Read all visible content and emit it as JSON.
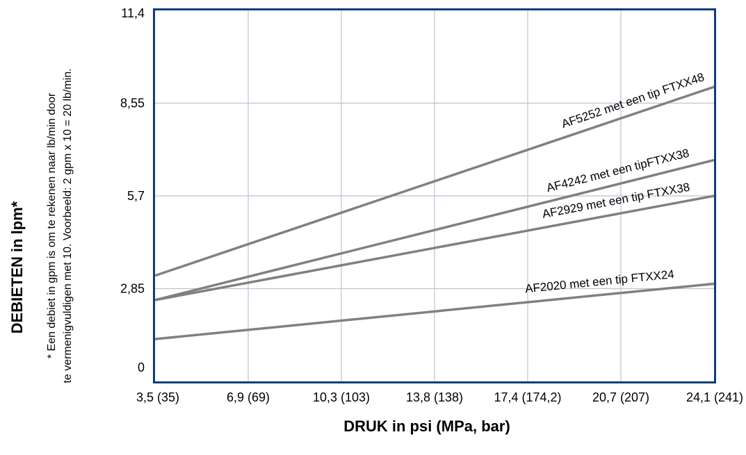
{
  "chart_data": {
    "type": "line",
    "xlabel": "DRUK in psi (MPa, bar)",
    "ylabel": "DEBIETEN in lpm*",
    "x_ticks": [
      "3,5 (35)",
      "6,9 (69)",
      "10,3 (103)",
      "13,8 (138)",
      "17,4 (174,2)",
      "20,7 (207)",
      "24,1 (241)"
    ],
    "y_ticks": [
      "0",
      "2,85",
      "5,7",
      "8,55",
      "11,4"
    ],
    "y_tick_values": [
      0,
      2.85,
      5.7,
      8.55,
      11.4
    ],
    "xlim": [
      3.5,
      24.1
    ],
    "ylim": [
      0,
      11.4
    ],
    "grid": true,
    "footnote": {
      "line1": "* Een debiet in gpm is om te rekenen naar lb/min door",
      "line2": "te vermenigvuldigen met 10. Voorbeeld: 2 gpm x 10 = 20 lb/min."
    },
    "series": [
      {
        "name": "AF5252 met een tip FTXX48",
        "x": [
          3.5,
          24.1
        ],
        "y": [
          3.25,
          9.05
        ]
      },
      {
        "name": "AF4242 met een tipFTXX38",
        "x": [
          3.5,
          24.1
        ],
        "y": [
          2.5,
          6.8
        ]
      },
      {
        "name": "AF2929 met een tip FTXX38",
        "x": [
          3.5,
          24.1
        ],
        "y": [
          2.5,
          5.7
        ]
      },
      {
        "name": "AF2020 met een tip FTXX24",
        "x": [
          3.5,
          24.1
        ],
        "y": [
          1.3,
          3.0
        ]
      }
    ],
    "colors": {
      "frame": "#0e3c7e",
      "grid": "#b9c4d2",
      "line": "#808080"
    }
  }
}
